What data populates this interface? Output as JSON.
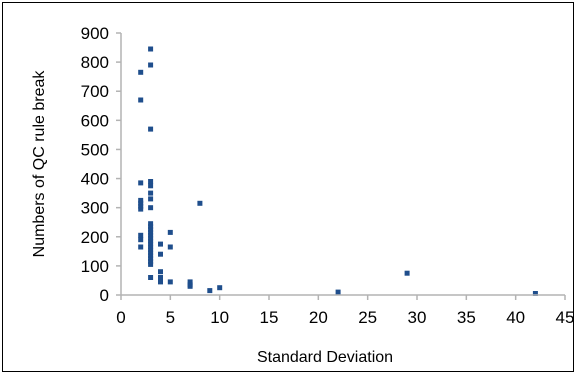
{
  "chart_data": {
    "type": "scatter",
    "title": "",
    "xlabel": "Standard Deviation",
    "ylabel": "Numbers of QC rule break",
    "xlim": [
      0,
      45
    ],
    "ylim": [
      0,
      900
    ],
    "xticks": [
      0,
      5,
      10,
      15,
      20,
      25,
      30,
      35,
      40,
      45
    ],
    "yticks": [
      0,
      100,
      200,
      300,
      400,
      500,
      600,
      700,
      800,
      900
    ],
    "grid": false,
    "legend": "none",
    "marker_color": "#1f4e8c",
    "axis_color": "#b3b3b3",
    "series": [
      {
        "points": [
          [
            2,
            765
          ],
          [
            2,
            670
          ],
          [
            2,
            385
          ],
          [
            2,
            325
          ],
          [
            2,
            315
          ],
          [
            2,
            305
          ],
          [
            2,
            295
          ],
          [
            2,
            205
          ],
          [
            2,
            190
          ],
          [
            2,
            165
          ],
          [
            3,
            845
          ],
          [
            3,
            790
          ],
          [
            3,
            570
          ],
          [
            3,
            390
          ],
          [
            3,
            375
          ],
          [
            3,
            350
          ],
          [
            3,
            330
          ],
          [
            3,
            300
          ],
          [
            3,
            245
          ],
          [
            3,
            235
          ],
          [
            3,
            225
          ],
          [
            3,
            215
          ],
          [
            3,
            205
          ],
          [
            3,
            195
          ],
          [
            3,
            185
          ],
          [
            3,
            175
          ],
          [
            3,
            165
          ],
          [
            3,
            155
          ],
          [
            3,
            145
          ],
          [
            3,
            135
          ],
          [
            3,
            125
          ],
          [
            3,
            115
          ],
          [
            3,
            105
          ],
          [
            3,
            60
          ],
          [
            4,
            175
          ],
          [
            4,
            140
          ],
          [
            4,
            80
          ],
          [
            4,
            60
          ],
          [
            4,
            45
          ],
          [
            5,
            215
          ],
          [
            5,
            165
          ],
          [
            5,
            45
          ],
          [
            7,
            45
          ],
          [
            7,
            35
          ],
          [
            7,
            30
          ],
          [
            8,
            315
          ],
          [
            9,
            15
          ],
          [
            10,
            25
          ],
          [
            22,
            10
          ],
          [
            29,
            75
          ],
          [
            42,
            5
          ]
        ]
      }
    ]
  }
}
